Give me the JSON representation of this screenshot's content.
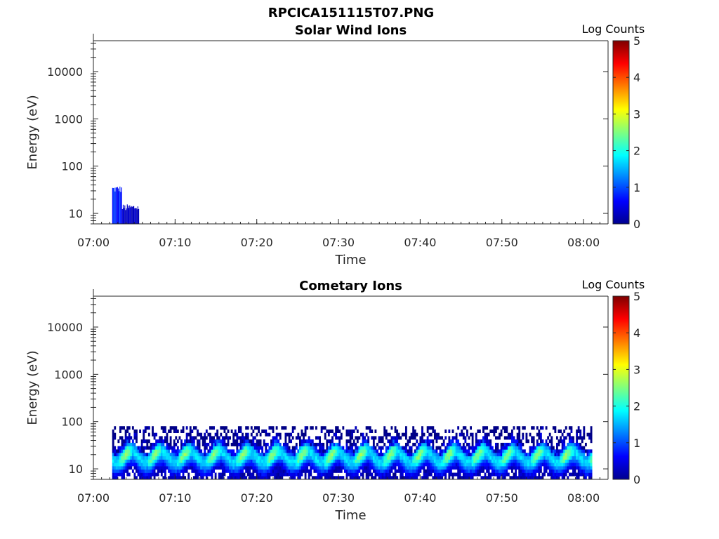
{
  "figure_title": "RPCICA151115T07.PNG",
  "colorbar_gradient": [
    "#00008f",
    "#0000ff",
    "#007fff",
    "#00ffff",
    "#7fff7f",
    "#ffff00",
    "#ff7f00",
    "#ff0000",
    "#7f0000"
  ],
  "chart_data": [
    {
      "type": "heatmap",
      "title": "Solar Wind Ions",
      "xlabel": "Time",
      "ylabel": "Energy (eV)",
      "x_ticks": [
        "07:00",
        "07:10",
        "07:20",
        "07:30",
        "07:40",
        "07:50",
        "08:00"
      ],
      "xlim": [
        "07:00",
        "08:03"
      ],
      "y_scale": "log",
      "y_ticks": [
        10,
        100,
        1000,
        10000
      ],
      "ylim": [
        6,
        45000
      ],
      "colorbar": {
        "label": "Log Counts",
        "ticks": [
          0,
          1,
          2,
          3,
          4,
          5
        ],
        "range": [
          0,
          5
        ]
      },
      "regions": [
        {
          "t_start": "07:02.3",
          "t_end": "07:03.5",
          "e_low": 6,
          "e_high": 32,
          "log_counts": 0.8
        },
        {
          "t_start": "07:03.5",
          "t_end": "07:05.5",
          "e_low": 6,
          "e_high": 13,
          "log_counts": 0.4
        }
      ]
    },
    {
      "type": "heatmap",
      "title": "Cometary Ions",
      "xlabel": "Time",
      "ylabel": "Energy (eV)",
      "x_ticks": [
        "07:00",
        "07:10",
        "07:20",
        "07:30",
        "07:40",
        "07:50",
        "08:00"
      ],
      "xlim": [
        "07:00",
        "08:03"
      ],
      "y_scale": "log",
      "y_ticks": [
        10,
        100,
        1000,
        10000
      ],
      "ylim": [
        6,
        45000
      ],
      "colorbar": {
        "label": "Log Counts",
        "ticks": [
          0,
          1,
          2,
          3,
          4,
          5
        ],
        "range": [
          0,
          5
        ]
      },
      "data_time_range": [
        "07:02.3",
        "08:01"
      ],
      "energy_range": [
        6,
        80
      ],
      "peak_log_counts": 2.4,
      "peak_energy": 18
    }
  ]
}
